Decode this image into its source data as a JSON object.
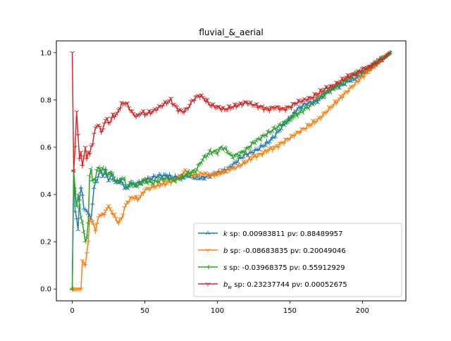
{
  "chart_data": {
    "type": "line",
    "title": "fluvial_&_aerial",
    "xlabel": "",
    "ylabel": "",
    "xlim": [
      -10.95,
      229.95
    ],
    "ylim": [
      -0.05,
      1.05
    ],
    "xticks": [
      0,
      50,
      100,
      150,
      200
    ],
    "yticks": [
      0.0,
      0.2,
      0.4,
      0.6,
      0.8,
      1.0
    ],
    "grid": false,
    "legend_position": "lower-right",
    "series": [
      {
        "name_main": "k",
        "name_sub": "",
        "name_rest": " sp: 0.00983811 pv: 0.88489957",
        "color": "#1f77b4",
        "marker": "tri_up",
        "keypoints": [
          [
            0,
            0.0
          ],
          [
            1,
            0.5
          ],
          [
            2,
            0.33
          ],
          [
            3,
            0.3
          ],
          [
            4,
            0.25
          ],
          [
            5,
            0.38
          ],
          [
            6,
            0.43
          ],
          [
            7,
            0.4
          ],
          [
            8,
            0.34
          ],
          [
            10,
            0.33
          ],
          [
            12,
            0.31
          ],
          [
            13,
            0.3
          ],
          [
            15,
            0.43
          ],
          [
            17,
            0.46
          ],
          [
            19,
            0.5
          ],
          [
            21,
            0.48
          ],
          [
            23,
            0.5
          ],
          [
            25,
            0.46
          ],
          [
            27,
            0.48
          ],
          [
            30,
            0.45
          ],
          [
            33,
            0.46
          ],
          [
            35,
            0.44
          ],
          [
            38,
            0.42
          ],
          [
            40,
            0.45
          ],
          [
            43,
            0.44
          ],
          [
            46,
            0.45
          ],
          [
            50,
            0.46
          ],
          [
            55,
            0.47
          ],
          [
            60,
            0.48
          ],
          [
            65,
            0.48
          ],
          [
            70,
            0.47
          ],
          [
            75,
            0.47
          ],
          [
            80,
            0.48
          ],
          [
            85,
            0.47
          ],
          [
            90,
            0.47
          ],
          [
            95,
            0.48
          ],
          [
            100,
            0.49
          ],
          [
            105,
            0.5
          ],
          [
            110,
            0.52
          ],
          [
            115,
            0.55
          ],
          [
            120,
            0.57
          ],
          [
            125,
            0.58
          ],
          [
            130,
            0.6
          ],
          [
            135,
            0.62
          ],
          [
            140,
            0.65
          ],
          [
            145,
            0.69
          ],
          [
            150,
            0.72
          ],
          [
            155,
            0.76
          ],
          [
            160,
            0.78
          ],
          [
            165,
            0.79
          ],
          [
            170,
            0.8
          ],
          [
            175,
            0.83
          ],
          [
            180,
            0.85
          ],
          [
            185,
            0.86
          ],
          [
            190,
            0.88
          ],
          [
            195,
            0.89
          ],
          [
            200,
            0.91
          ],
          [
            205,
            0.93
          ],
          [
            210,
            0.96
          ],
          [
            215,
            0.98
          ],
          [
            219,
            1.0
          ]
        ]
      },
      {
        "name_main": "b",
        "name_sub": "",
        "name_rest": " sp: -0.08683835 pv: 0.20049046",
        "color": "#ff7f0e",
        "marker": "tri_down",
        "keypoints": [
          [
            0,
            0.0
          ],
          [
            2,
            0.0
          ],
          [
            4,
            0.0
          ],
          [
            6,
            0.0
          ],
          [
            7,
            0.12
          ],
          [
            8,
            0.11
          ],
          [
            9,
            0.1
          ],
          [
            10,
            0.15
          ],
          [
            11,
            0.2
          ],
          [
            12,
            0.3
          ],
          [
            14,
            0.28
          ],
          [
            16,
            0.25
          ],
          [
            18,
            0.3
          ],
          [
            20,
            0.32
          ],
          [
            22,
            0.31
          ],
          [
            24,
            0.35
          ],
          [
            26,
            0.34
          ],
          [
            28,
            0.32
          ],
          [
            30,
            0.3
          ],
          [
            32,
            0.28
          ],
          [
            34,
            0.3
          ],
          [
            36,
            0.34
          ],
          [
            38,
            0.37
          ],
          [
            40,
            0.38
          ],
          [
            42,
            0.39
          ],
          [
            45,
            0.38
          ],
          [
            48,
            0.4
          ],
          [
            50,
            0.42
          ],
          [
            55,
            0.43
          ],
          [
            60,
            0.44
          ],
          [
            65,
            0.45
          ],
          [
            70,
            0.46
          ],
          [
            75,
            0.48
          ],
          [
            78,
            0.5
          ],
          [
            80,
            0.49
          ],
          [
            85,
            0.48
          ],
          [
            90,
            0.49
          ],
          [
            95,
            0.48
          ],
          [
            100,
            0.49
          ],
          [
            105,
            0.5
          ],
          [
            110,
            0.51
          ],
          [
            115,
            0.52
          ],
          [
            120,
            0.54
          ],
          [
            125,
            0.56
          ],
          [
            130,
            0.57
          ],
          [
            135,
            0.59
          ],
          [
            140,
            0.6
          ],
          [
            145,
            0.62
          ],
          [
            150,
            0.64
          ],
          [
            155,
            0.66
          ],
          [
            160,
            0.68
          ],
          [
            165,
            0.7
          ],
          [
            170,
            0.72
          ],
          [
            175,
            0.75
          ],
          [
            180,
            0.78
          ],
          [
            185,
            0.81
          ],
          [
            190,
            0.84
          ],
          [
            195,
            0.87
          ],
          [
            200,
            0.9
          ],
          [
            205,
            0.93
          ],
          [
            210,
            0.95
          ],
          [
            215,
            0.98
          ],
          [
            219,
            1.0
          ]
        ]
      },
      {
        "name_main": "s",
        "name_sub": "",
        "name_rest": " sp: -0.03968375 pv: 0.55912929",
        "color": "#2ca02c",
        "marker": "tri_left",
        "keypoints": [
          [
            0,
            0.0
          ],
          [
            1,
            0.5
          ],
          [
            2,
            0.42
          ],
          [
            3,
            0.35
          ],
          [
            4,
            0.4
          ],
          [
            5,
            0.35
          ],
          [
            6,
            0.3
          ],
          [
            7,
            0.28
          ],
          [
            8,
            0.24
          ],
          [
            9,
            0.2
          ],
          [
            10,
            0.22
          ],
          [
            11,
            0.28
          ],
          [
            12,
            0.48
          ],
          [
            13,
            0.5
          ],
          [
            14,
            0.46
          ],
          [
            16,
            0.47
          ],
          [
            18,
            0.52
          ],
          [
            20,
            0.5
          ],
          [
            22,
            0.51
          ],
          [
            24,
            0.47
          ],
          [
            26,
            0.5
          ],
          [
            28,
            0.48
          ],
          [
            30,
            0.46
          ],
          [
            32,
            0.45
          ],
          [
            34,
            0.47
          ],
          [
            36,
            0.46
          ],
          [
            38,
            0.43
          ],
          [
            40,
            0.45
          ],
          [
            42,
            0.44
          ],
          [
            45,
            0.44
          ],
          [
            48,
            0.45
          ],
          [
            50,
            0.46
          ],
          [
            55,
            0.45
          ],
          [
            60,
            0.46
          ],
          [
            65,
            0.47
          ],
          [
            70,
            0.46
          ],
          [
            75,
            0.47
          ],
          [
            80,
            0.49
          ],
          [
            85,
            0.5
          ],
          [
            90,
            0.55
          ],
          [
            95,
            0.58
          ],
          [
            100,
            0.58
          ],
          [
            103,
            0.6
          ],
          [
            106,
            0.59
          ],
          [
            110,
            0.56
          ],
          [
            115,
            0.57
          ],
          [
            120,
            0.59
          ],
          [
            125,
            0.62
          ],
          [
            130,
            0.64
          ],
          [
            135,
            0.66
          ],
          [
            140,
            0.68
          ],
          [
            145,
            0.7
          ],
          [
            150,
            0.72
          ],
          [
            155,
            0.74
          ],
          [
            160,
            0.76
          ],
          [
            165,
            0.78
          ],
          [
            170,
            0.81
          ],
          [
            175,
            0.83
          ],
          [
            180,
            0.85
          ],
          [
            185,
            0.87
          ],
          [
            190,
            0.89
          ],
          [
            195,
            0.91
          ],
          [
            200,
            0.92
          ],
          [
            205,
            0.94
          ],
          [
            210,
            0.96
          ],
          [
            215,
            0.98
          ],
          [
            219,
            1.0
          ]
        ]
      },
      {
        "name_main": "b",
        "name_sub": "w",
        "name_rest": " sp: 0.23237744 pv: 0.00052675",
        "color": "#d62728",
        "marker": "tri_down",
        "keypoints": [
          [
            0,
            1.0
          ],
          [
            1,
            0.5
          ],
          [
            2,
            0.6
          ],
          [
            3,
            0.75
          ],
          [
            4,
            0.65
          ],
          [
            5,
            0.55
          ],
          [
            6,
            0.58
          ],
          [
            7,
            0.52
          ],
          [
            8,
            0.56
          ],
          [
            9,
            0.6
          ],
          [
            10,
            0.55
          ],
          [
            11,
            0.58
          ],
          [
            12,
            0.57
          ],
          [
            13,
            0.6
          ],
          [
            14,
            0.62
          ],
          [
            16,
            0.68
          ],
          [
            18,
            0.7
          ],
          [
            20,
            0.66
          ],
          [
            22,
            0.7
          ],
          [
            24,
            0.72
          ],
          [
            26,
            0.7
          ],
          [
            28,
            0.74
          ],
          [
            30,
            0.73
          ],
          [
            32,
            0.76
          ],
          [
            34,
            0.78
          ],
          [
            36,
            0.79
          ],
          [
            38,
            0.78
          ],
          [
            40,
            0.76
          ],
          [
            42,
            0.74
          ],
          [
            45,
            0.73
          ],
          [
            48,
            0.75
          ],
          [
            50,
            0.74
          ],
          [
            55,
            0.75
          ],
          [
            60,
            0.77
          ],
          [
            65,
            0.79
          ],
          [
            68,
            0.8
          ],
          [
            70,
            0.78
          ],
          [
            73,
            0.76
          ],
          [
            76,
            0.75
          ],
          [
            79,
            0.76
          ],
          [
            82,
            0.79
          ],
          [
            85,
            0.81
          ],
          [
            88,
            0.82
          ],
          [
            92,
            0.8
          ],
          [
            95,
            0.78
          ],
          [
            100,
            0.77
          ],
          [
            105,
            0.76
          ],
          [
            110,
            0.77
          ],
          [
            115,
            0.78
          ],
          [
            120,
            0.79
          ],
          [
            125,
            0.78
          ],
          [
            130,
            0.77
          ],
          [
            135,
            0.76
          ],
          [
            140,
            0.77
          ],
          [
            145,
            0.76
          ],
          [
            150,
            0.77
          ],
          [
            155,
            0.79
          ],
          [
            160,
            0.8
          ],
          [
            165,
            0.81
          ],
          [
            170,
            0.83
          ],
          [
            175,
            0.85
          ],
          [
            180,
            0.86
          ],
          [
            185,
            0.88
          ],
          [
            190,
            0.9
          ],
          [
            195,
            0.91
          ],
          [
            200,
            0.93
          ],
          [
            205,
            0.94
          ],
          [
            210,
            0.96
          ],
          [
            215,
            0.98
          ],
          [
            219,
            1.0
          ]
        ]
      }
    ]
  }
}
